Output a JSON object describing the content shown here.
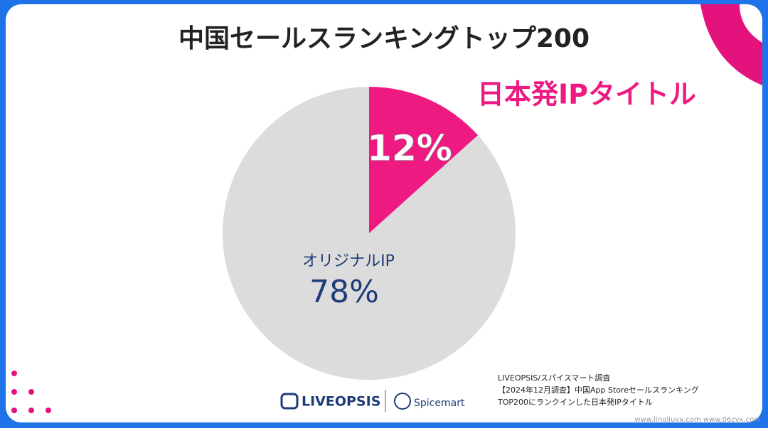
{
  "chart_data": {
    "type": "pie",
    "title": "中国セールスランキングトップ200",
    "categories": [
      "日本発IPタイトル",
      "オリジナルIP"
    ],
    "values": [
      12,
      78
    ],
    "value_labels": [
      "12%",
      "78%"
    ],
    "colors": [
      "#ee1a82",
      "#dcdcdc"
    ]
  },
  "source": [
    "LIVEOPSIS/スパイスマート調査",
    "【2024年12月調査】中国App Storeセールスランキング",
    "TOP200にランクインした日本発IPタイトル"
  ],
  "logos": [
    "LIVEOPSIS",
    "Spicemart"
  ],
  "watermark": "www.lingliuyx.com www.06zyx.com"
}
